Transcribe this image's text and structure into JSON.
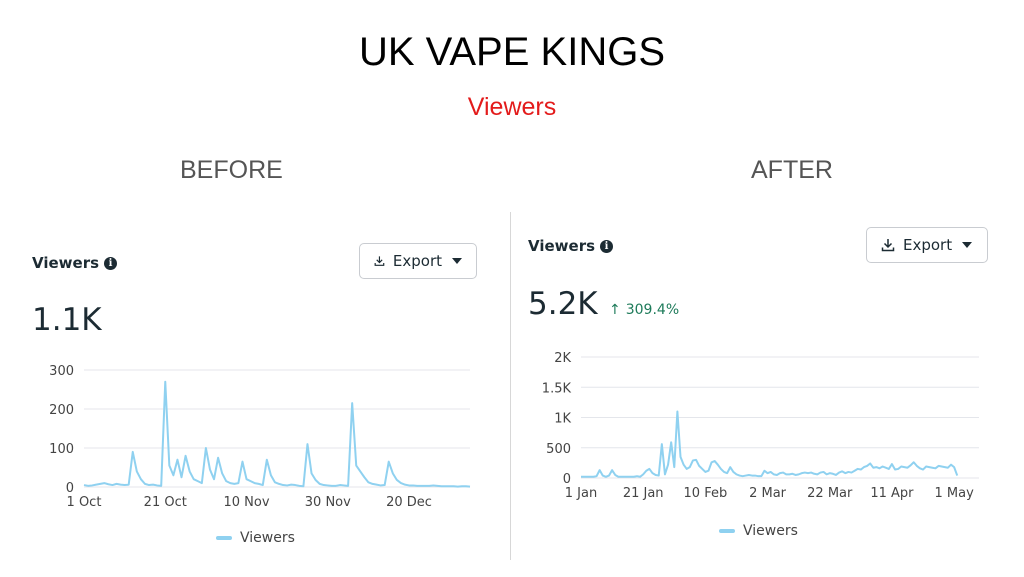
{
  "title": "UK VAPE KINGS",
  "subtitle": "Viewers",
  "panels": [
    {
      "heading": "BEFORE",
      "card_label": "Viewers",
      "export_label": "Export",
      "value": "1.1K",
      "change": "",
      "legend": "Viewers",
      "line_color": "#8fd1f0"
    },
    {
      "heading": "AFTER",
      "card_label": "Viewers",
      "export_label": "Export",
      "value": "5.2K",
      "change": "309.4%",
      "legend": "Viewers",
      "line_color": "#8fd1f0"
    }
  ],
  "chart_data": [
    {
      "type": "line",
      "x_unit": "day",
      "ylim": [
        0,
        300
      ],
      "yticks": [
        0,
        100,
        200,
        300
      ],
      "ytick_labels": [
        "0",
        "100",
        "200",
        "300"
      ],
      "xtick_labels": [
        "1 Oct",
        "21 Oct",
        "10 Nov",
        "30 Nov",
        "20 Dec"
      ],
      "xtick_positions": [
        0,
        20,
        40,
        60,
        80
      ],
      "xlim": [
        0,
        95
      ],
      "grid": true,
      "legend": "bottom-center",
      "series": [
        {
          "name": "Viewers",
          "values": [
            5,
            3,
            4,
            6,
            8,
            10,
            7,
            5,
            8,
            6,
            5,
            6,
            90,
            40,
            20,
            8,
            5,
            6,
            4,
            3,
            270,
            55,
            30,
            70,
            25,
            80,
            40,
            20,
            15,
            10,
            100,
            45,
            20,
            75,
            35,
            15,
            10,
            8,
            10,
            65,
            20,
            15,
            10,
            8,
            5,
            70,
            30,
            12,
            8,
            5,
            4,
            6,
            5,
            3,
            2,
            110,
            35,
            18,
            8,
            5,
            4,
            3,
            3,
            5,
            4,
            3,
            215,
            55,
            40,
            25,
            12,
            8,
            6,
            4,
            5,
            65,
            35,
            18,
            10,
            6,
            4,
            4,
            3,
            3,
            3,
            3,
            4,
            3,
            2,
            2,
            2,
            2,
            1,
            2,
            2,
            1
          ]
        }
      ]
    },
    {
      "type": "line",
      "x_unit": "day",
      "ylim": [
        0,
        2000
      ],
      "yticks": [
        0,
        500,
        1000,
        1500,
        2000
      ],
      "ytick_labels": [
        "0",
        "500",
        "1K",
        "1.5K",
        "2K"
      ],
      "xtick_labels": [
        "1 Jan",
        "21 Jan",
        "10 Feb",
        "2 Mar",
        "22 Mar",
        "11 Apr",
        "1 May"
      ],
      "xtick_positions": [
        0,
        20,
        40,
        60,
        80,
        100,
        120
      ],
      "xlim": [
        0,
        128
      ],
      "grid": true,
      "legend": "bottom-center",
      "series": [
        {
          "name": "Viewers",
          "values": [
            20,
            20,
            20,
            20,
            20,
            30,
            130,
            40,
            20,
            40,
            130,
            50,
            20,
            20,
            20,
            20,
            20,
            20,
            30,
            20,
            60,
            120,
            150,
            80,
            50,
            40,
            560,
            60,
            220,
            590,
            180,
            1100,
            350,
            220,
            150,
            180,
            290,
            300,
            200,
            150,
            100,
            120,
            260,
            280,
            220,
            150,
            100,
            80,
            180,
            100,
            60,
            40,
            30,
            40,
            50,
            40,
            40,
            30,
            30,
            120,
            80,
            100,
            60,
            50,
            80,
            90,
            60,
            60,
            70,
            50,
            60,
            80,
            90,
            80,
            90,
            70,
            60,
            90,
            100,
            60,
            80,
            70,
            50,
            90,
            110,
            80,
            100,
            90,
            120,
            150,
            140,
            180,
            200,
            240,
            170,
            180,
            160,
            190,
            170,
            150,
            230,
            140,
            150,
            190,
            180,
            170,
            210,
            260,
            200,
            160,
            140,
            190,
            180,
            170,
            160,
            200,
            190,
            180,
            170,
            220,
            180,
            40
          ]
        }
      ]
    }
  ]
}
